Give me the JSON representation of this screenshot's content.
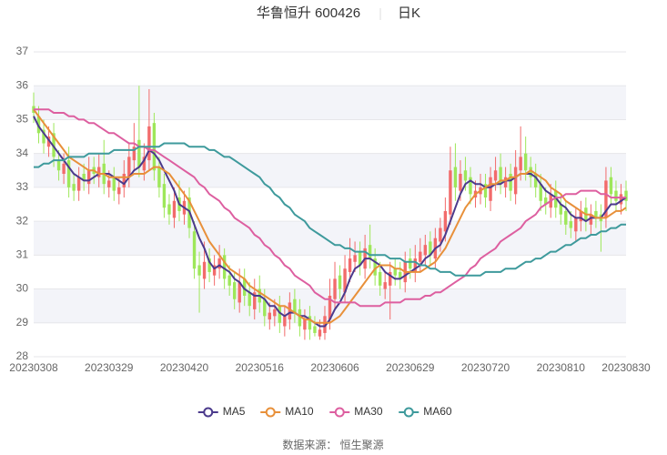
{
  "chart_data": {
    "type": "candlestick",
    "title": "华鲁恒升 600426",
    "subtitle": "日K",
    "source": "数据来源：  恒生聚源",
    "up_color": "#f26b6b",
    "down_color": "#9ee75a",
    "grid": true,
    "legend": "bottom",
    "ylim": [
      28,
      37
    ],
    "yticks": [
      28,
      29,
      30,
      31,
      32,
      33,
      34,
      35,
      36,
      37
    ],
    "categories": [
      "20230308",
      null,
      null,
      null,
      null,
      null,
      null,
      null,
      null,
      null,
      null,
      null,
      null,
      null,
      null,
      "20230329",
      null,
      null,
      null,
      null,
      null,
      null,
      null,
      null,
      null,
      null,
      null,
      null,
      null,
      null,
      "20230420",
      null,
      null,
      null,
      null,
      null,
      null,
      null,
      null,
      null,
      null,
      null,
      null,
      null,
      null,
      "20230516",
      null,
      null,
      null,
      null,
      null,
      null,
      null,
      null,
      null,
      null,
      null,
      null,
      null,
      null,
      "20230606",
      null,
      null,
      null,
      null,
      null,
      null,
      null,
      null,
      null,
      null,
      null,
      null,
      null,
      null,
      "20230629",
      null,
      null,
      null,
      null,
      null,
      null,
      null,
      null,
      null,
      null,
      null,
      null,
      null,
      null,
      "20230720",
      null,
      null,
      null,
      null,
      null,
      null,
      null,
      null,
      null,
      null,
      null,
      null,
      null,
      null,
      "20230810",
      null,
      null,
      null,
      null,
      null,
      null,
      null,
      null,
      null,
      null,
      null,
      null,
      "20230830"
    ],
    "open": [
      35.4,
      35.1,
      34.7,
      34.2,
      34.6,
      33.8,
      33.4,
      33.8,
      33.1,
      32.9,
      33.4,
      33.1,
      33.6,
      33.3,
      33.7,
      33.0,
      33.3,
      32.8,
      33.0,
      33.3,
      33.8,
      34.4,
      33.5,
      33.8,
      34.9,
      33.6,
      33.1,
      32.5,
      32.1,
      32.7,
      32.2,
      32.7,
      31.7,
      30.7,
      30.3,
      30.9,
      30.4,
      30.6,
      31.0,
      30.4,
      30.2,
      29.6,
      30.3,
      29.9,
      29.4,
      30.0,
      29.7,
      29.1,
      29.2,
      29.5,
      28.9,
      29.1,
      29.7,
      29.4,
      28.8,
      29.2,
      28.9,
      28.6,
      28.7,
      29.1,
      29.7,
      30.4,
      29.9,
      30.5,
      30.8,
      31.1,
      30.6,
      31.3,
      30.9,
      30.5,
      30.0,
      30.1,
      30.6,
      30.5,
      30.2,
      30.9,
      30.5,
      30.8,
      31.0,
      31.4,
      30.9,
      31.4,
      31.7,
      32.2,
      33.6,
      32.9,
      33.5,
      33.3,
      32.7,
      32.8,
      33.1,
      32.6,
      33.2,
      33.6,
      33.0,
      33.4,
      32.8,
      33.5,
      34.0,
      33.6,
      33.4,
      33.1,
      32.7,
      32.4,
      32.9,
      32.5,
      32.3,
      32.0,
      31.7,
      32.0,
      32.4,
      31.9,
      32.3,
      32.2,
      32.1,
      33.3,
      32.9,
      32.5,
      32.9
    ],
    "high": [
      35.8,
      35.4,
      35.0,
      34.8,
      34.9,
      34.1,
      34.0,
      34.2,
      33.4,
      33.6,
      33.7,
      33.9,
      33.9,
      34.0,
      34.4,
      33.5,
      33.6,
      33.3,
      33.8,
      34.3,
      34.9,
      36.0,
      34.3,
      35.9,
      35.2,
      33.9,
      33.4,
      32.8,
      33.0,
      33.2,
      32.9,
      33.0,
      32.0,
      31.1,
      31.4,
      31.2,
      31.0,
      31.3,
      31.2,
      30.7,
      30.5,
      30.6,
      30.6,
      30.2,
      30.3,
      30.4,
      30.0,
      29.6,
      29.7,
      29.8,
      29.5,
      29.9,
      30.0,
      29.7,
      29.4,
      29.5,
      29.2,
      29.1,
      29.5,
      30.3,
      30.8,
      30.7,
      31.0,
      31.5,
      31.4,
      31.4,
      31.6,
      31.9,
      31.2,
      30.8,
      30.5,
      30.8,
      30.9,
      30.8,
      31.1,
      31.2,
      31.3,
      31.5,
      31.6,
      31.7,
      31.8,
      32.1,
      32.7,
      34.2,
      34.3,
      33.8,
      33.9,
      33.6,
      33.2,
      33.4,
      33.4,
      33.6,
      33.9,
      34.0,
      33.6,
      33.7,
      34.1,
      34.8,
      34.5,
      33.9,
      33.7,
      33.4,
      33.0,
      33.1,
      33.2,
      32.8,
      32.6,
      32.3,
      32.4,
      32.6,
      32.7,
      32.5,
      32.6,
      32.5,
      33.6,
      33.6,
      33.2,
      33.1,
      33.2
    ],
    "low": [
      34.9,
      34.3,
      34.0,
      33.9,
      33.6,
      33.2,
      33.1,
      32.7,
      32.6,
      32.6,
      32.9,
      32.8,
      33.1,
      33.0,
      32.8,
      32.7,
      32.6,
      32.5,
      32.7,
      33.0,
      33.5,
      33.3,
      33.2,
      33.5,
      33.2,
      32.7,
      32.1,
      31.9,
      31.8,
      32.0,
      31.9,
      31.5,
      30.3,
      29.3,
      30.0,
      30.2,
      30.1,
      30.3,
      30.0,
      29.8,
      29.4,
      29.3,
      29.5,
      29.2,
      29.1,
      29.3,
      28.9,
      28.8,
      28.9,
      28.7,
      28.6,
      28.8,
      29.0,
      28.6,
      28.5,
      28.5,
      28.6,
      28.5,
      28.5,
      28.8,
      29.4,
      29.7,
      29.6,
      30.2,
      30.5,
      30.4,
      30.3,
      30.6,
      30.1,
      29.8,
      29.7,
      29.1,
      30.1,
      30.0,
      29.9,
      30.3,
      30.2,
      30.5,
      30.7,
      30.7,
      30.6,
      31.1,
      31.4,
      31.9,
      32.6,
      32.6,
      32.9,
      32.5,
      32.4,
      32.5,
      32.4,
      32.3,
      32.9,
      32.8,
      32.7,
      32.6,
      32.5,
      33.2,
      33.2,
      33.0,
      32.7,
      32.3,
      32.2,
      32.1,
      32.1,
      31.9,
      31.6,
      31.5,
      31.4,
      31.7,
      31.7,
      31.6,
      31.8,
      31.1,
      31.8,
      32.5,
      32.3,
      32.2,
      32.3
    ],
    "close": [
      35.2,
      34.6,
      34.3,
      34.5,
      33.9,
      33.5,
      33.7,
      33.0,
      32.9,
      33.3,
      33.2,
      33.5,
      33.4,
      33.6,
      33.1,
      33.2,
      32.9,
      33.0,
      33.4,
      33.9,
      34.2,
      33.6,
      33.9,
      34.8,
      33.5,
      33.0,
      32.4,
      32.2,
      32.6,
      32.3,
      32.6,
      31.8,
      30.6,
      30.4,
      30.8,
      30.5,
      30.7,
      30.9,
      30.3,
      30.1,
      29.7,
      30.2,
      29.8,
      29.5,
      29.9,
      29.6,
      29.2,
      29.3,
      29.4,
      29.0,
      29.2,
      29.6,
      29.3,
      28.9,
      29.1,
      28.8,
      28.7,
      28.8,
      29.2,
      29.8,
      30.3,
      30.0,
      30.6,
      30.9,
      31.0,
      30.7,
      31.2,
      30.9,
      30.4,
      30.1,
      30.2,
      30.5,
      30.4,
      30.3,
      30.8,
      30.6,
      30.9,
      31.1,
      31.3,
      31.0,
      31.5,
      31.8,
      32.3,
      33.5,
      33.0,
      33.4,
      33.2,
      32.8,
      32.9,
      33.0,
      32.7,
      33.3,
      33.5,
      33.1,
      33.3,
      32.9,
      33.6,
      33.9,
      33.5,
      33.3,
      33.0,
      32.6,
      32.5,
      32.8,
      32.4,
      32.2,
      31.9,
      31.8,
      32.1,
      32.3,
      32.0,
      32.2,
      32.1,
      32.0,
      33.2,
      32.8,
      32.6,
      32.8,
      32.6
    ],
    "series": [
      {
        "name": "MA5",
        "color": "#4b3a8c",
        "values": [
          35.1,
          34.8,
          34.6,
          34.4,
          34.2,
          34.0,
          33.8,
          33.6,
          33.4,
          33.3,
          33.2,
          33.2,
          33.3,
          33.4,
          33.4,
          33.4,
          33.3,
          33.2,
          33.1,
          33.3,
          33.5,
          33.6,
          33.8,
          34.1,
          34.0,
          33.8,
          33.5,
          33.2,
          32.9,
          32.5,
          32.4,
          32.3,
          31.9,
          31.5,
          31.2,
          30.8,
          30.6,
          30.7,
          30.6,
          30.5,
          30.3,
          30.2,
          30.0,
          29.9,
          29.8,
          29.8,
          29.7,
          29.5,
          29.5,
          29.3,
          29.2,
          29.3,
          29.3,
          29.2,
          29.2,
          29.1,
          29.0,
          28.9,
          28.9,
          29.1,
          29.4,
          29.6,
          29.9,
          30.3,
          30.6,
          30.7,
          30.9,
          30.9,
          30.8,
          30.7,
          30.5,
          30.4,
          30.3,
          30.3,
          30.4,
          30.5,
          30.6,
          30.7,
          30.9,
          31.0,
          31.2,
          31.3,
          31.6,
          32.0,
          32.4,
          32.8,
          33.1,
          33.2,
          33.1,
          33.1,
          33.0,
          33.0,
          33.1,
          33.1,
          33.2,
          33.2,
          33.3,
          33.4,
          33.4,
          33.4,
          33.3,
          33.1,
          32.9,
          32.8,
          32.7,
          32.5,
          32.4,
          32.2,
          32.1,
          32.1,
          32.0,
          32.1,
          32.1,
          32.1,
          32.3,
          32.5,
          32.5,
          32.6,
          32.7
        ]
      },
      {
        "name": "MA10",
        "color": "#e8903a",
        "values": [
          35.3,
          35.1,
          34.9,
          34.7,
          34.5,
          34.3,
          34.1,
          33.9,
          33.8,
          33.7,
          33.6,
          33.5,
          33.5,
          33.4,
          33.4,
          33.3,
          33.3,
          33.3,
          33.3,
          33.3,
          33.4,
          33.4,
          33.4,
          33.5,
          33.6,
          33.6,
          33.5,
          33.4,
          33.2,
          33.0,
          32.8,
          32.6,
          32.3,
          32.0,
          31.7,
          31.4,
          31.2,
          31.0,
          30.8,
          30.6,
          30.5,
          30.4,
          30.3,
          30.1,
          30.0,
          29.9,
          29.8,
          29.7,
          29.6,
          29.5,
          29.5,
          29.4,
          29.3,
          29.2,
          29.1,
          29.1,
          29.0,
          29.0,
          29.0,
          29.0,
          29.1,
          29.2,
          29.4,
          29.6,
          29.8,
          30.0,
          30.2,
          30.4,
          30.6,
          30.7,
          30.7,
          30.7,
          30.6,
          30.6,
          30.5,
          30.5,
          30.5,
          30.5,
          30.6,
          30.7,
          30.8,
          31.0,
          31.2,
          31.5,
          31.8,
          32.1,
          32.4,
          32.6,
          32.8,
          32.9,
          33.0,
          33.1,
          33.1,
          33.2,
          33.2,
          33.3,
          33.3,
          33.4,
          33.4,
          33.5,
          33.4,
          33.3,
          33.2,
          33.0,
          32.9,
          32.8,
          32.6,
          32.5,
          32.4,
          32.3,
          32.2,
          32.2,
          32.1,
          32.1,
          32.1,
          32.2,
          32.3,
          32.3,
          32.4
        ]
      },
      {
        "name": "MA30",
        "color": "#dd5fa0",
        "values": [
          35.3,
          35.3,
          35.3,
          35.3,
          35.2,
          35.2,
          35.2,
          35.1,
          35.1,
          35.0,
          35.0,
          34.9,
          34.9,
          34.8,
          34.7,
          34.6,
          34.6,
          34.5,
          34.4,
          34.3,
          34.3,
          34.2,
          34.2,
          34.1,
          34.1,
          34.0,
          33.9,
          33.8,
          33.7,
          33.6,
          33.5,
          33.4,
          33.3,
          33.1,
          33.0,
          32.8,
          32.7,
          32.6,
          32.4,
          32.3,
          32.1,
          32.0,
          31.9,
          31.8,
          31.6,
          31.5,
          31.3,
          31.2,
          31.0,
          30.9,
          30.7,
          30.6,
          30.4,
          30.3,
          30.2,
          30.1,
          29.9,
          29.8,
          29.7,
          29.7,
          29.6,
          29.6,
          29.6,
          29.6,
          29.6,
          29.5,
          29.5,
          29.5,
          29.5,
          29.5,
          29.6,
          29.6,
          29.6,
          29.6,
          29.7,
          29.7,
          29.7,
          29.7,
          29.8,
          29.8,
          29.9,
          29.9,
          30.0,
          30.1,
          30.2,
          30.3,
          30.4,
          30.6,
          30.7,
          30.9,
          31.0,
          31.1,
          31.2,
          31.4,
          31.5,
          31.6,
          31.7,
          31.8,
          32.0,
          32.1,
          32.2,
          32.4,
          32.5,
          32.6,
          32.7,
          32.7,
          32.8,
          32.8,
          32.8,
          32.9,
          32.9,
          32.9,
          32.9,
          32.8,
          32.8,
          32.7,
          32.7,
          32.7,
          32.7
        ]
      },
      {
        "name": "MA60",
        "color": "#3e9a9c",
        "values": [
          33.6,
          33.6,
          33.7,
          33.7,
          33.8,
          33.8,
          33.8,
          33.9,
          33.9,
          33.9,
          33.9,
          34.0,
          34.0,
          34.0,
          34.0,
          34.0,
          34.1,
          34.1,
          34.1,
          34.1,
          34.1,
          34.2,
          34.2,
          34.2,
          34.2,
          34.2,
          34.3,
          34.3,
          34.3,
          34.3,
          34.3,
          34.2,
          34.2,
          34.2,
          34.2,
          34.1,
          34.1,
          34.0,
          33.9,
          33.9,
          33.8,
          33.7,
          33.6,
          33.5,
          33.4,
          33.3,
          33.1,
          33.0,
          32.8,
          32.7,
          32.5,
          32.4,
          32.2,
          32.1,
          32.0,
          31.8,
          31.7,
          31.6,
          31.5,
          31.4,
          31.3,
          31.3,
          31.2,
          31.2,
          31.1,
          31.1,
          31.1,
          31.0,
          31.0,
          31.0,
          31.0,
          30.9,
          30.9,
          30.9,
          30.8,
          30.8,
          30.8,
          30.7,
          30.7,
          30.6,
          30.6,
          30.5,
          30.5,
          30.5,
          30.4,
          30.4,
          30.4,
          30.4,
          30.4,
          30.4,
          30.5,
          30.5,
          30.5,
          30.5,
          30.6,
          30.6,
          30.6,
          30.7,
          30.8,
          30.8,
          30.9,
          30.9,
          31.0,
          31.1,
          31.1,
          31.2,
          31.3,
          31.3,
          31.4,
          31.5,
          31.5,
          31.6,
          31.6,
          31.7,
          31.7,
          31.8,
          31.8,
          31.9,
          31.9
        ]
      }
    ]
  }
}
